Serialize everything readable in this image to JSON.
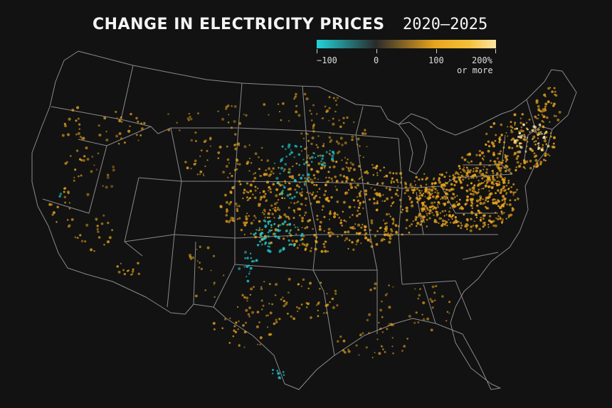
{
  "title": "CHANGE IN ELECTRICITY PRICES",
  "title_years": "2020–2025",
  "legend": {
    "ticks": [
      "−100",
      "0",
      "100",
      "200%"
    ],
    "last_tick_subtext": "or more",
    "gradient": [
      "#22d3d8",
      "#2a2a2a",
      "#e8a51f",
      "#f4c03a",
      "#fbe7a6"
    ]
  },
  "colors": {
    "background": "#121212",
    "borders": "#8a8a8a",
    "decrease": "#22d3d8",
    "increase": "#e8a51f",
    "high_increase": "#fbe7a6"
  }
}
